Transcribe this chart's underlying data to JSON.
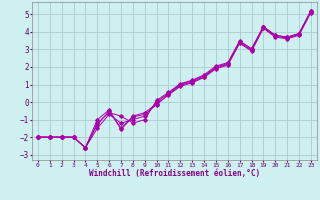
{
  "xlabel": "Windchill (Refroidissement éolien,°C)",
  "bg_color": "#cff0f0",
  "grid_color": "#aacccc",
  "line_color": "#aa00aa",
  "xlim": [
    -0.5,
    23.5
  ],
  "ylim": [
    -3.3,
    5.7
  ],
  "xticks": [
    0,
    1,
    2,
    3,
    4,
    5,
    6,
    7,
    8,
    9,
    10,
    11,
    12,
    13,
    14,
    15,
    16,
    17,
    18,
    19,
    20,
    21,
    22,
    23
  ],
  "yticks": [
    -3,
    -2,
    -1,
    0,
    1,
    2,
    3,
    4,
    5
  ],
  "lines": [
    [
      0,
      1,
      2,
      3,
      4,
      5,
      6,
      7,
      8,
      9,
      10,
      11,
      12,
      13,
      14,
      15,
      16,
      17,
      18,
      19,
      20,
      21,
      22,
      23
    ],
    [
      -2,
      -2,
      -2,
      -2,
      -2.6,
      -1.5,
      -0.7,
      -1.2,
      -1.0,
      -0.8,
      0.0,
      0.5,
      1.0,
      1.2,
      1.5,
      2.0,
      2.2,
      3.5,
      3.0,
      4.3,
      3.8,
      3.7,
      3.9,
      5.2
    ],
    [
      -2,
      -2,
      -2,
      -2,
      -2.6,
      -1.3,
      -0.5,
      -1.55,
      -0.85,
      -0.7,
      -0.15,
      0.45,
      0.95,
      1.15,
      1.45,
      1.95,
      2.15,
      3.4,
      2.95,
      4.25,
      3.75,
      3.65,
      3.85,
      5.15
    ],
    [
      -2,
      -2,
      -2,
      -2,
      -2.6,
      -1.0,
      -0.45,
      -1.5,
      -0.8,
      -0.6,
      -0.1,
      0.4,
      0.9,
      1.1,
      1.4,
      1.9,
      2.1,
      3.35,
      2.9,
      4.2,
      3.7,
      3.6,
      3.8,
      5.1
    ],
    [
      -2,
      -2,
      -2,
      -2,
      -2.6,
      -1.2,
      -0.6,
      -0.8,
      -1.2,
      -1.0,
      0.1,
      0.55,
      1.05,
      1.25,
      1.55,
      2.05,
      2.25,
      3.45,
      3.05,
      4.3,
      3.8,
      3.7,
      3.9,
      5.2
    ]
  ]
}
